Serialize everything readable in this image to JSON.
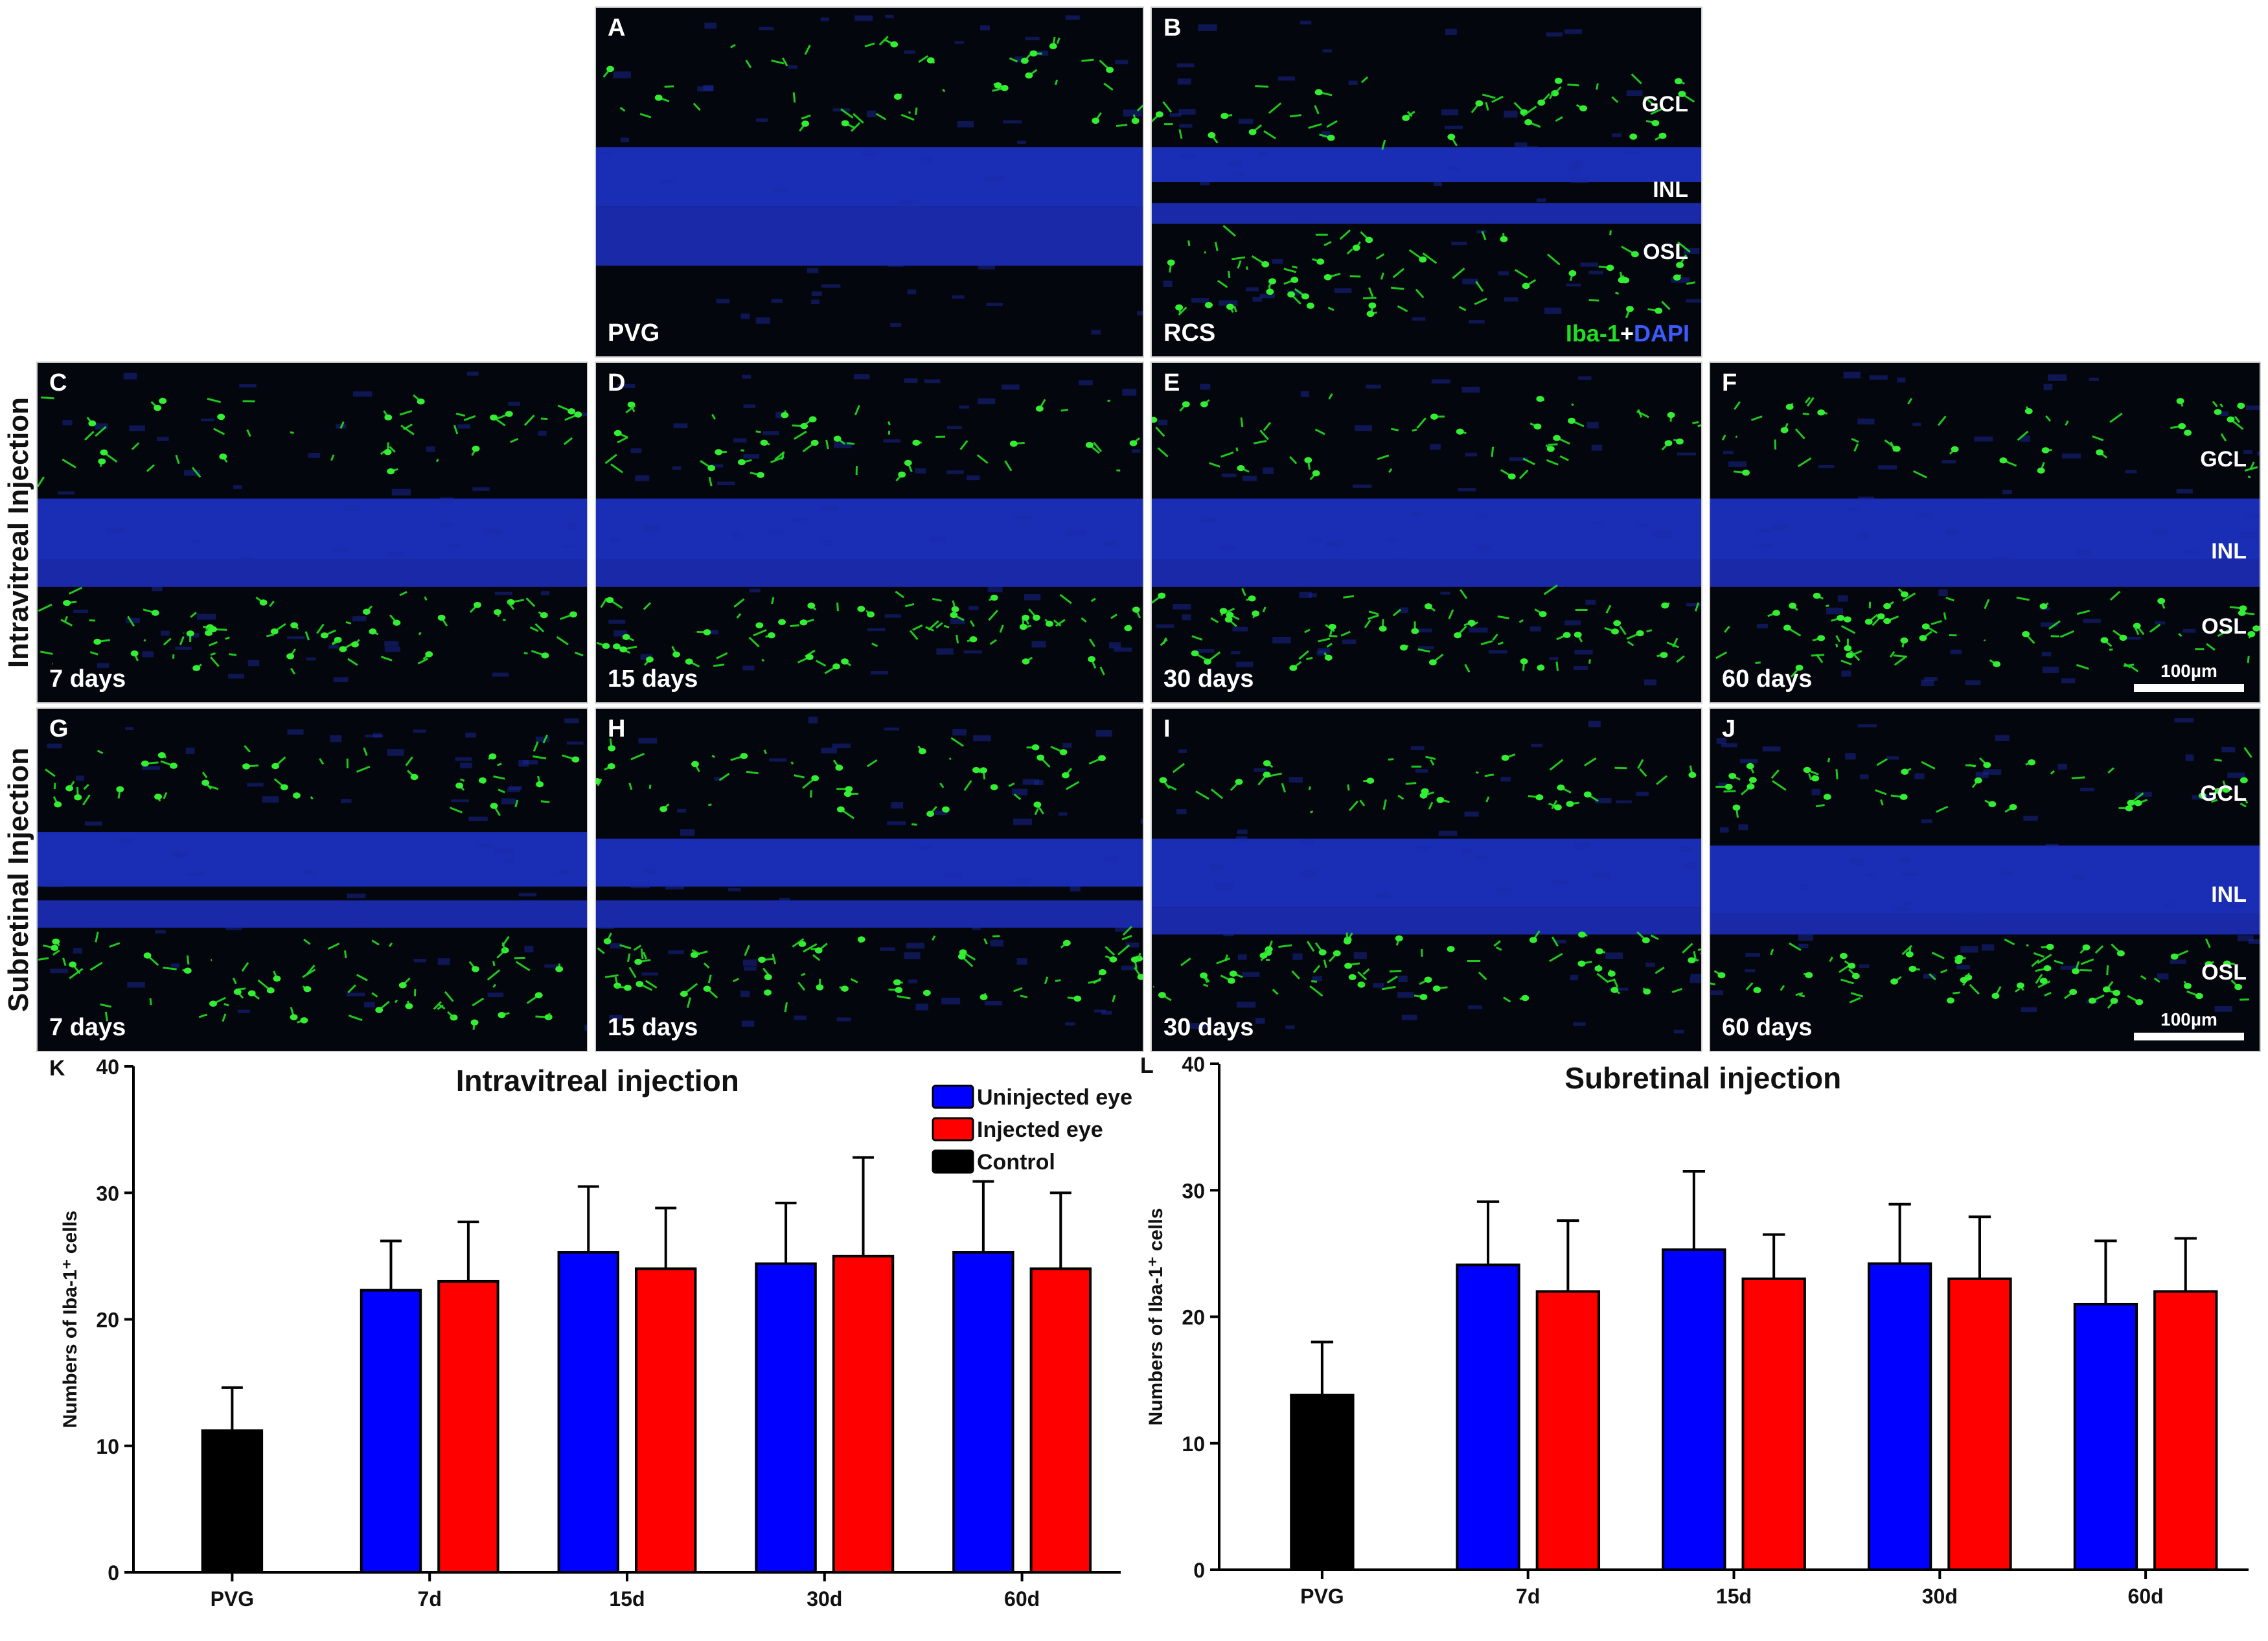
{
  "micrographs": [
    {
      "id": "A",
      "label": "A",
      "condition": "PVG",
      "layers": []
    },
    {
      "id": "B",
      "label": "B",
      "condition": "RCS",
      "layers": [
        "GCL",
        "INL",
        "OSL"
      ],
      "stain_legend": {
        "green": "Iba-1",
        "plus": "+",
        "blue": "DAPI"
      }
    },
    {
      "id": "C",
      "label": "C",
      "condition": "7 days",
      "layers": []
    },
    {
      "id": "D",
      "label": "D",
      "condition": "15 days",
      "layers": []
    },
    {
      "id": "E",
      "label": "E",
      "condition": "30 days",
      "layers": []
    },
    {
      "id": "F",
      "label": "F",
      "condition": "60 days",
      "layers": [
        "GCL",
        "INL",
        "OSL"
      ],
      "scale_bar": "100µm"
    },
    {
      "id": "G",
      "label": "G",
      "condition": "7 days",
      "layers": []
    },
    {
      "id": "H",
      "label": "H",
      "condition": "15 days",
      "layers": []
    },
    {
      "id": "I",
      "label": "I",
      "condition": "30 days",
      "layers": []
    },
    {
      "id": "J",
      "label": "J",
      "condition": "60 days",
      "layers": [
        "GCL",
        "INL",
        "OSL"
      ],
      "scale_bar": "100µm"
    }
  ],
  "row_labels": {
    "intravitreal": "Intravitreal Injection",
    "subretinal": "Subretinal Injection"
  },
  "colors": {
    "uninjected": "#0000ff",
    "injected": "#ff0000",
    "control": "#000000",
    "dapi": "#1a2fd0",
    "iba1": "#22dd22"
  },
  "chart_data": [
    {
      "type": "bar",
      "panel_label": "K",
      "title": "Intravitreal injection",
      "ylabel": "Numbers of Iba-1⁺ cells",
      "xlabel": "",
      "ylim": [
        0,
        40
      ],
      "yticks": [
        0,
        10,
        20,
        30,
        40
      ],
      "categories": [
        "PVG",
        "7d",
        "15d",
        "30d",
        "60d"
      ],
      "legend": {
        "position": "top-right",
        "entries": [
          "Uninjected eye",
          "Injected eye",
          "Control"
        ]
      },
      "series": [
        {
          "name": "Control",
          "values": [
            11.2,
            null,
            null,
            null,
            null
          ],
          "errors": [
            3.4,
            null,
            null,
            null,
            null
          ]
        },
        {
          "name": "Uninjected eye",
          "values": [
            null,
            22.3,
            25.3,
            24.4,
            25.3
          ],
          "errors": [
            null,
            3.9,
            5.2,
            4.8,
            5.6
          ]
        },
        {
          "name": "Injected eye",
          "values": [
            null,
            23.0,
            24.0,
            25.0,
            24.0
          ],
          "errors": [
            null,
            4.7,
            4.8,
            7.8,
            6.0
          ]
        }
      ]
    },
    {
      "type": "bar",
      "panel_label": "L",
      "title": "Subretinal injection",
      "ylabel": "Numbers of Iba-1⁺ cells",
      "xlabel": "",
      "ylim": [
        0,
        40
      ],
      "yticks": [
        0,
        10,
        20,
        30,
        40
      ],
      "categories": [
        "PVG",
        "7d",
        "15d",
        "30d",
        "60d"
      ],
      "series": [
        {
          "name": "Control",
          "values": [
            13.8,
            null,
            null,
            null,
            null
          ],
          "errors": [
            4.2,
            null,
            null,
            null,
            null
          ]
        },
        {
          "name": "Uninjected eye",
          "values": [
            null,
            24.1,
            25.3,
            24.2,
            21.0
          ],
          "errors": [
            null,
            5.0,
            6.2,
            4.7,
            5.0
          ]
        },
        {
          "name": "Injected eye",
          "values": [
            null,
            22.0,
            23.0,
            23.0,
            22.0
          ],
          "errors": [
            null,
            5.6,
            3.5,
            4.9,
            4.2
          ]
        }
      ]
    }
  ]
}
